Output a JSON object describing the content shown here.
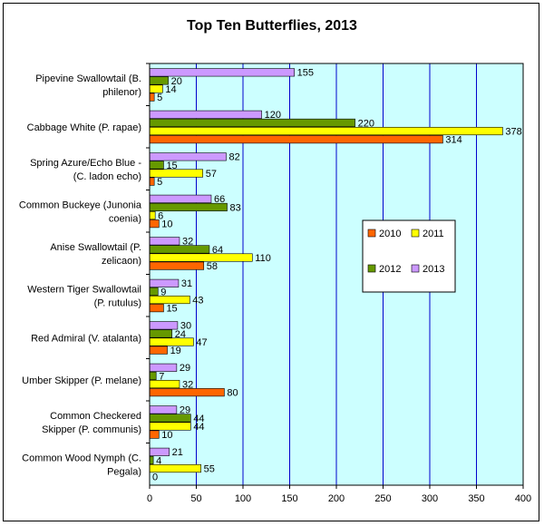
{
  "chart_data": {
    "type": "bar",
    "orientation": "horizontal",
    "title": "Top Ten Butterflies, 2013",
    "xlabel": "",
    "ylabel": "",
    "xlim": [
      0,
      400
    ],
    "xticks": [
      0,
      50,
      100,
      150,
      200,
      250,
      300,
      350,
      400
    ],
    "grid": true,
    "legend_position": "right-center",
    "categories": [
      [
        "Pipevine Swallowtail (B.",
        "philenor)"
      ],
      [
        "Cabbage White (P. rapae)"
      ],
      [
        "Spring Azure/Echo Blue -",
        "(C. ladon echo)"
      ],
      [
        "Common Buckeye (Junonia",
        "coenia)"
      ],
      [
        "Anise Swallowtail (P.",
        "zelicaon)"
      ],
      [
        "Western Tiger Swallowtail",
        "(P. rutulus)"
      ],
      [
        "Red Admiral (V. atalanta)"
      ],
      [
        "Umber Skipper (P. melane)"
      ],
      [
        "Common Checkered",
        "Skipper (P. communis)"
      ],
      [
        "Common Wood Nymph (C.",
        "Pegala)"
      ]
    ],
    "series": [
      {
        "name": "2010",
        "color": "#ff6600",
        "values": [
          5,
          314,
          5,
          10,
          58,
          15,
          19,
          80,
          10,
          0
        ]
      },
      {
        "name": "2011",
        "color": "#ffff00",
        "values": [
          14,
          378,
          57,
          6,
          110,
          43,
          47,
          32,
          44,
          55
        ]
      },
      {
        "name": "2012",
        "color": "#669900",
        "values": [
          20,
          220,
          15,
          83,
          64,
          9,
          24,
          7,
          44,
          4
        ]
      },
      {
        "name": "2013",
        "color": "#cc99ff",
        "values": [
          155,
          120,
          82,
          66,
          32,
          31,
          30,
          29,
          29,
          21
        ]
      }
    ],
    "plot_background": "#ccffff",
    "gridline_color": "#0000cc"
  }
}
